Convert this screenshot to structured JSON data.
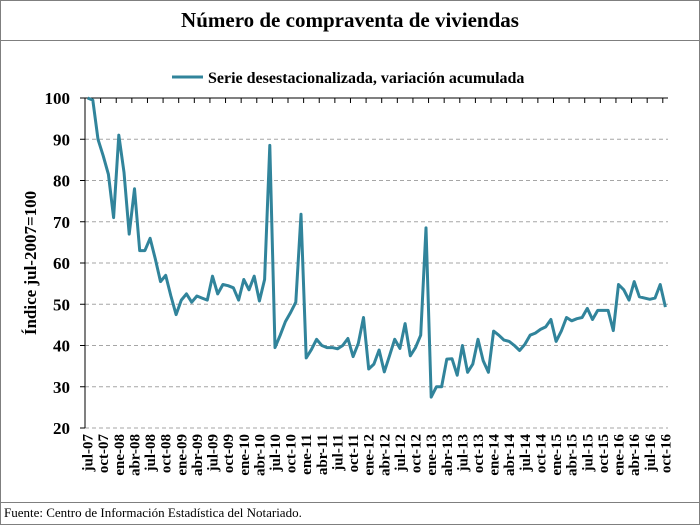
{
  "title": "Número de compraventa de viviendas",
  "footer": "Fuente: Centro de Información Estadística del Notariado.",
  "chart_data": {
    "type": "line",
    "title": "Número de compraventa de viviendas",
    "xlabel": "",
    "ylabel": "Índice jul-2007=100",
    "ylim": [
      20,
      100
    ],
    "yticks": [
      20,
      30,
      40,
      50,
      60,
      70,
      80,
      90,
      100
    ],
    "grid": true,
    "legend_position": "top",
    "line_color": "#31849B",
    "tick_labels": [
      "jul-07",
      "oct-07",
      "ene-08",
      "abr-08",
      "jul-08",
      "oct-08",
      "ene-09",
      "abr-09",
      "jul-09",
      "oct-09",
      "ene-10",
      "abr-10",
      "jul-10",
      "oct-10",
      "ene-11",
      "abr-11",
      "jul-11",
      "oct-11",
      "ene-12",
      "abr-12",
      "jul-12",
      "oct-12",
      "ene-13",
      "abr-13",
      "jul-13",
      "oct-13",
      "ene-14",
      "abr-14",
      "jul-14",
      "oct-14",
      "ene-15",
      "abr-15",
      "jul-15",
      "oct-15",
      "ene-16",
      "abr-16",
      "jul-16",
      "oct-16"
    ],
    "series": [
      {
        "name": "Serie desestacionalizada, variación acumulada",
        "start": "jul-07",
        "end": "oct-16",
        "frequency": "monthly",
        "values": [
          100,
          99.5,
          90,
          86,
          81.5,
          71,
          91,
          82,
          67,
          78,
          63,
          63,
          66,
          61,
          55.5,
          57,
          52,
          47.5,
          51,
          52.5,
          50.5,
          52,
          51.5,
          51,
          56.8,
          52.5,
          54.8,
          54.5,
          54,
          51,
          56,
          53.5,
          56.8,
          50.8,
          56,
          88.5,
          39.5,
          42.5,
          45.8,
          48,
          50.5,
          71.8,
          37,
          39,
          41.5,
          40,
          39.5,
          39.5,
          39.2,
          40,
          41.7,
          37.3,
          40.5,
          46.8,
          34.3,
          35.5,
          38.9,
          33.6,
          37.5,
          41.5,
          39.3,
          45.3,
          37.5,
          39.5,
          42.5,
          68.5,
          27.5,
          30,
          30,
          36.7,
          36.8,
          32.8,
          40,
          33.5,
          35.5,
          41.5,
          36.3,
          33.5,
          43.5,
          42.5,
          41.3,
          41,
          40,
          38.8,
          40.3,
          42.5,
          43,
          43.9,
          44.5,
          46.3,
          41,
          43.5,
          46.8,
          46,
          46.5,
          46.8,
          49,
          46.3,
          48.5,
          48.5,
          48.5,
          43.6,
          54.8,
          53.5,
          51,
          55.5,
          51.8,
          51.5,
          51.2,
          51.5,
          54.8,
          49.3
        ]
      }
    ]
  }
}
